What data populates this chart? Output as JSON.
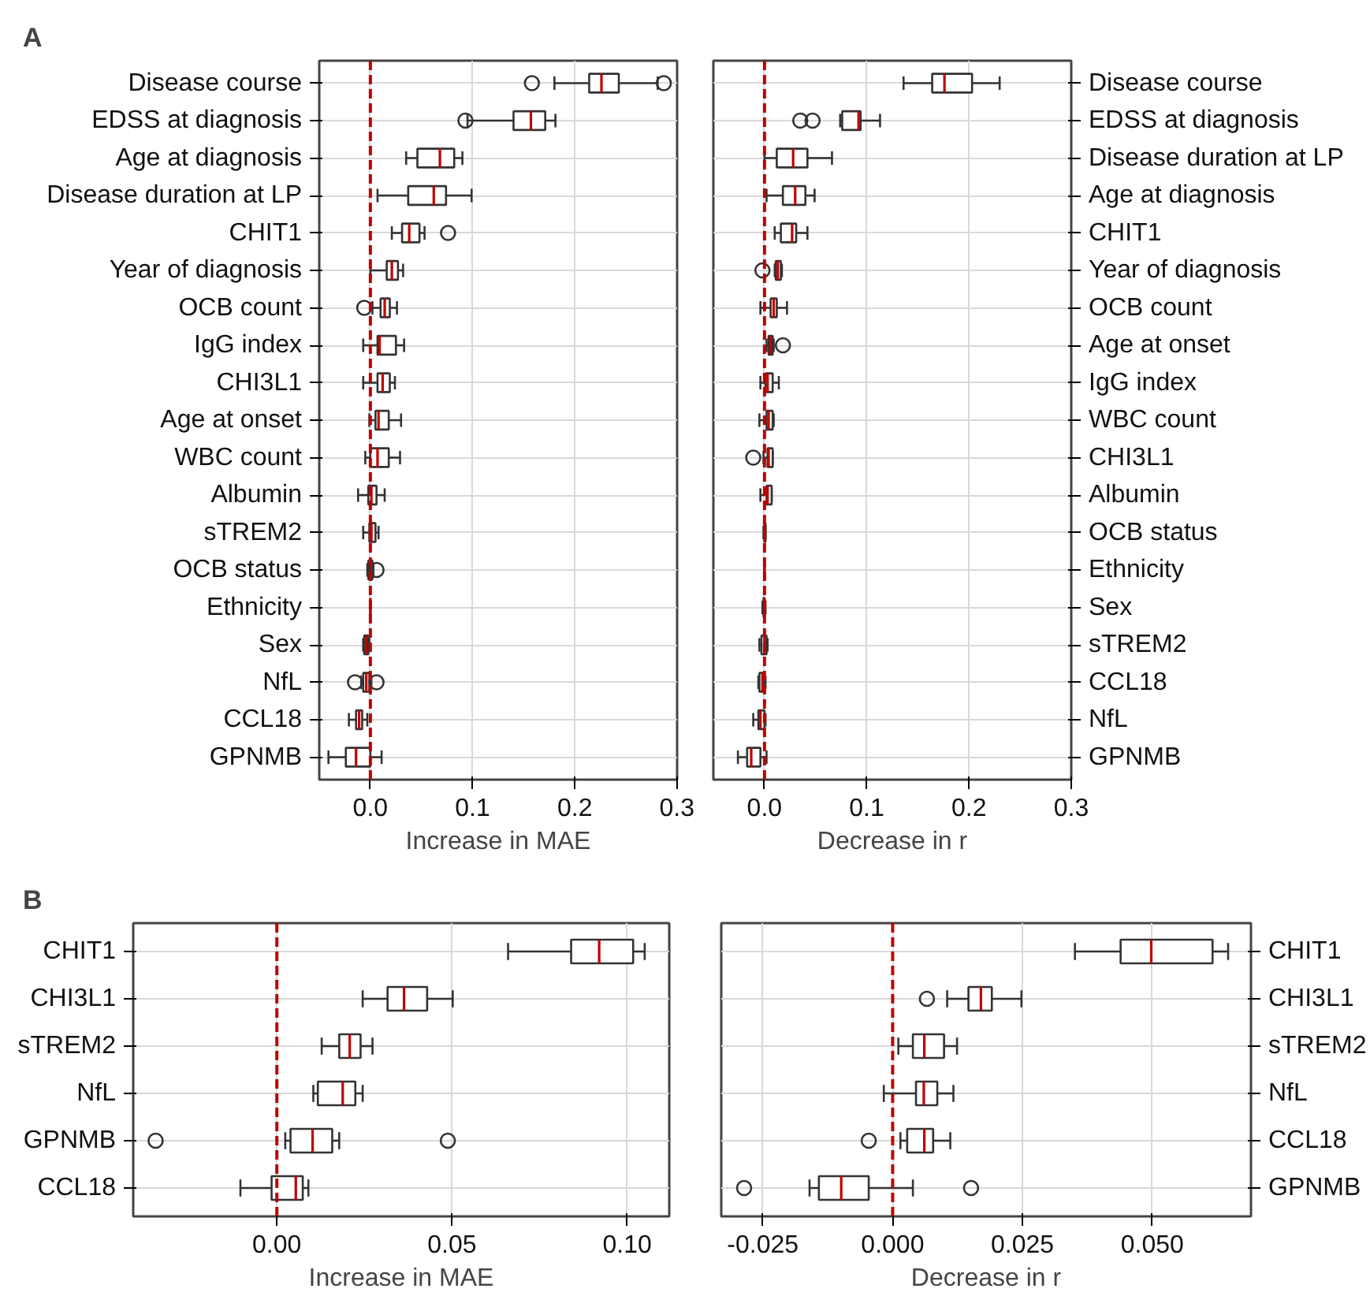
{
  "chart_data": [
    {
      "type": "box",
      "orientation": "horizontal",
      "annotations": [
        "A"
      ],
      "xlabel": "Increase in MAE",
      "xlim": [
        -0.05,
        0.3
      ],
      "xticks": [
        {
          "value": 0,
          "label": "0.0"
        },
        {
          "value": 0.1,
          "label": "0.1"
        },
        {
          "value": 0.2,
          "label": "0.2"
        },
        {
          "value": 0.3,
          "label": "0.3"
        }
      ],
      "grid": true,
      "categories": [
        "Disease course",
        "EDSS at diagnosis",
        "Age at diagnosis",
        "Disease duration at LP",
        "CHIT1",
        "Year of diagnosis",
        "OCB count",
        "IgG index",
        "CHI3L1",
        "Age at onset",
        "WBC count",
        "Albumin",
        "sTREM2",
        "OCB status",
        "Ethnicity",
        "Sex",
        "NfL",
        "CCL18",
        "GPNMB"
      ],
      "ref_lines": [
        {
          "axis": "x",
          "value": 0,
          "color": "#c00000",
          "line_style": "dashed"
        }
      ],
      "series": [
        {
          "color": "#333333",
          "boxes": [
            {
              "low": 0.18,
              "q1": 0.214,
              "median": 0.226,
              "q3": 0.243,
              "high": 0.281,
              "outliers": [
                0.158,
                0.287
              ]
            },
            {
              "low": 0.095,
              "q1": 0.14,
              "median": 0.157,
              "q3": 0.171,
              "high": 0.181,
              "outliers": [
                0.093
              ]
            },
            {
              "low": 0.035,
              "q1": 0.046,
              "median": 0.068,
              "q3": 0.082,
              "high": 0.09
            },
            {
              "low": 0.007,
              "q1": 0.037,
              "median": 0.062,
              "q3": 0.074,
              "high": 0.099
            },
            {
              "low": 0.021,
              "q1": 0.031,
              "median": 0.038,
              "q3": 0.048,
              "high": 0.053,
              "outliers": [
                0.076
              ]
            },
            {
              "low": 0.0,
              "q1": 0.016,
              "median": 0.021,
              "q3": 0.027,
              "high": 0.032
            },
            {
              "low": 0.002,
              "q1": 0.01,
              "median": 0.014,
              "q3": 0.019,
              "high": 0.026,
              "outliers": [
                -0.006
              ]
            },
            {
              "low": -0.007,
              "q1": 0.007,
              "median": 0.009,
              "q3": 0.025,
              "high": 0.033
            },
            {
              "low": -0.007,
              "q1": 0.007,
              "median": 0.012,
              "q3": 0.019,
              "high": 0.024
            },
            {
              "low": -0.001,
              "q1": 0.005,
              "median": 0.008,
              "q3": 0.018,
              "high": 0.03
            },
            {
              "low": -0.005,
              "q1": 0.0,
              "median": 0.007,
              "q3": 0.018,
              "high": 0.029
            },
            {
              "low": -0.012,
              "q1": -0.002,
              "median": 0.001,
              "q3": 0.006,
              "high": 0.014
            },
            {
              "low": -0.007,
              "q1": -0.001,
              "median": 0.001,
              "q3": 0.005,
              "high": 0.008
            },
            {
              "low": -0.003,
              "q1": -0.002,
              "median": 0.0,
              "q3": 0.002,
              "high": 0.003,
              "outliers": [
                0.006
              ]
            },
            {
              "low": 0.0,
              "q1": 0.0,
              "median": 0.0,
              "q3": 0.0,
              "high": 0.0
            },
            {
              "low": -0.007,
              "q1": -0.006,
              "median": -0.004,
              "q3": -0.002,
              "high": -0.001
            },
            {
              "low": -0.009,
              "q1": -0.007,
              "median": -0.004,
              "q3": -0.001,
              "high": 0.001,
              "outliers": [
                -0.015,
                0.006
              ]
            },
            {
              "low": -0.021,
              "q1": -0.014,
              "median": -0.011,
              "q3": -0.008,
              "high": -0.003
            },
            {
              "low": -0.041,
              "q1": -0.024,
              "median": -0.014,
              "q3": 0.0,
              "high": 0.011
            }
          ]
        }
      ]
    },
    {
      "type": "box",
      "orientation": "horizontal",
      "xlabel": "Decrease in r",
      "xlim": [
        -0.05,
        0.3
      ],
      "xticks": [
        {
          "value": 0,
          "label": "0.0"
        },
        {
          "value": 0.1,
          "label": "0.1"
        },
        {
          "value": 0.2,
          "label": "0.2"
        },
        {
          "value": 0.3,
          "label": "0.3"
        }
      ],
      "grid": true,
      "categories": [
        "Disease course",
        "EDSS at diagnosis",
        "Disease duration at LP",
        "Age at diagnosis",
        "CHIT1",
        "Year of diagnosis",
        "OCB count",
        "Age at onset",
        "IgG index",
        "WBC count",
        "CHI3L1",
        "Albumin",
        "OCB status",
        "Ethnicity",
        "Sex",
        "sTREM2",
        "CCL18",
        "NfL",
        "GPNMB"
      ],
      "ref_lines": [
        {
          "axis": "x",
          "value": 0,
          "color": "#c00000",
          "line_style": "dashed"
        }
      ],
      "series": [
        {
          "color": "#333333",
          "boxes": [
            {
              "low": 0.136,
              "q1": 0.164,
              "median": 0.176,
              "q3": 0.203,
              "high": 0.23
            },
            {
              "low": 0.074,
              "q1": 0.076,
              "median": 0.092,
              "q3": 0.094,
              "high": 0.113,
              "outliers": [
                0.035,
                0.047
              ]
            },
            {
              "low": 0.0,
              "q1": 0.012,
              "median": 0.028,
              "q3": 0.042,
              "high": 0.066
            },
            {
              "low": 0.002,
              "q1": 0.018,
              "median": 0.03,
              "q3": 0.04,
              "high": 0.049
            },
            {
              "low": 0.01,
              "q1": 0.016,
              "median": 0.027,
              "q3": 0.031,
              "high": 0.042
            },
            {
              "low": 0.01,
              "q1": 0.011,
              "median": 0.013,
              "q3": 0.016,
              "high": 0.017,
              "outliers": [
                -0.002
              ]
            },
            {
              "low": -0.004,
              "q1": 0.006,
              "median": 0.009,
              "q3": 0.012,
              "high": 0.022
            },
            {
              "low": 0.002,
              "q1": 0.004,
              "median": 0.006,
              "q3": 0.008,
              "high": 0.009,
              "outliers": [
                0.018
              ]
            },
            {
              "low": -0.004,
              "q1": 0.001,
              "median": 0.003,
              "q3": 0.008,
              "high": 0.014
            },
            {
              "low": -0.005,
              "q1": 0.002,
              "median": 0.004,
              "q3": 0.008,
              "high": 0.009
            },
            {
              "low": -0.001,
              "q1": 0.003,
              "median": 0.004,
              "q3": 0.008,
              "high": 0.008,
              "outliers": [
                -0.011
              ]
            },
            {
              "low": -0.004,
              "q1": 0.002,
              "median": 0.003,
              "q3": 0.007,
              "high": 0.007
            },
            {
              "low": -0.001,
              "q1": 0.0,
              "median": 0.0,
              "q3": 0.001,
              "high": 0.001
            },
            {
              "low": 0.0,
              "q1": 0.0,
              "median": 0.0,
              "q3": 0.0,
              "high": 0.0
            },
            {
              "low": -0.002,
              "q1": -0.001,
              "median": 0.0,
              "q3": 0.0,
              "high": 0.001
            },
            {
              "low": -0.005,
              "q1": -0.003,
              "median": 0.0,
              "q3": 0.002,
              "high": 0.003
            },
            {
              "low": -0.006,
              "q1": -0.005,
              "median": -0.002,
              "q3": 0.0,
              "high": 0.001
            },
            {
              "low": -0.011,
              "q1": -0.006,
              "median": -0.004,
              "q3": 0.0,
              "high": 0.001
            },
            {
              "low": -0.026,
              "q1": -0.017,
              "median": -0.013,
              "q3": -0.004,
              "high": 0.002
            }
          ]
        }
      ]
    },
    {
      "type": "box",
      "orientation": "horizontal",
      "annotations": [
        "B"
      ],
      "xlabel": "Increase in MAE",
      "xlim": [
        -0.041,
        0.112
      ],
      "xticks": [
        {
          "value": 0,
          "label": "0.00"
        },
        {
          "value": 0.05,
          "label": "0.05"
        },
        {
          "value": 0.1,
          "label": "0.10"
        }
      ],
      "grid": true,
      "categories": [
        "CHIT1",
        "CHI3L1",
        "sTREM2",
        "NfL",
        "GPNMB",
        "CCL18"
      ],
      "ref_lines": [
        {
          "axis": "x",
          "value": 0,
          "color": "#c00000",
          "line_style": "dashed"
        }
      ],
      "series": [
        {
          "color": "#333333",
          "boxes": [
            {
              "low": 0.066,
              "q1": 0.084,
              "median": 0.092,
              "q3": 0.1017,
              "high": 0.105
            },
            {
              "low": 0.0245,
              "q1": 0.0316,
              "median": 0.0363,
              "q3": 0.0429,
              "high": 0.0502
            },
            {
              "low": 0.0128,
              "q1": 0.0178,
              "median": 0.0208,
              "q3": 0.0239,
              "high": 0.0273
            },
            {
              "low": 0.0104,
              "q1": 0.0117,
              "median": 0.0188,
              "q3": 0.0224,
              "high": 0.0245
            },
            {
              "low": 0.0024,
              "q1": 0.0039,
              "median": 0.0102,
              "q3": 0.0158,
              "high": 0.0178,
              "outliers": [
                -0.0346,
                0.0488
              ]
            },
            {
              "low": -0.0104,
              "q1": -0.0015,
              "median": 0.0054,
              "q3": 0.0074,
              "high": 0.009
            }
          ]
        }
      ]
    },
    {
      "type": "box",
      "orientation": "horizontal",
      "xlabel": "Decrease in r",
      "xlim": [
        -0.033,
        0.069
      ],
      "xticks": [
        {
          "value": -0.025,
          "label": "-0.025"
        },
        {
          "value": 0,
          "label": "0.000"
        },
        {
          "value": 0.025,
          "label": "0.025"
        },
        {
          "value": 0.05,
          "label": "0.050"
        }
      ],
      "grid": true,
      "categories": [
        "CHIT1",
        "CHI3L1",
        "sTREM2",
        "NfL",
        "CCL18",
        "GPNMB"
      ],
      "ref_lines": [
        {
          "axis": "x",
          "value": 0,
          "color": "#c00000",
          "line_style": "dashed"
        }
      ],
      "series": [
        {
          "color": "#333333",
          "boxes": [
            {
              "low": 0.0351,
              "q1": 0.0439,
              "median": 0.0498,
              "q3": 0.0616,
              "high": 0.0646
            },
            {
              "low": 0.0105,
              "q1": 0.0146,
              "median": 0.017,
              "q3": 0.0191,
              "high": 0.0248,
              "outliers": [
                0.0066
              ]
            },
            {
              "low": 0.0011,
              "q1": 0.0039,
              "median": 0.0061,
              "q3": 0.0099,
              "high": 0.0124
            },
            {
              "low": -0.0017,
              "q1": 0.0045,
              "median": 0.006,
              "q3": 0.0086,
              "high": 0.0117
            },
            {
              "low": 0.0015,
              "q1": 0.0028,
              "median": 0.0061,
              "q3": 0.0078,
              "high": 0.0111,
              "outliers": [
                -0.0046
              ]
            },
            {
              "low": -0.016,
              "q1": -0.0142,
              "median": -0.0099,
              "q3": -0.0046,
              "high": 0.0039,
              "outliers": [
                -0.0286,
                0.0151
              ]
            }
          ]
        }
      ]
    }
  ]
}
